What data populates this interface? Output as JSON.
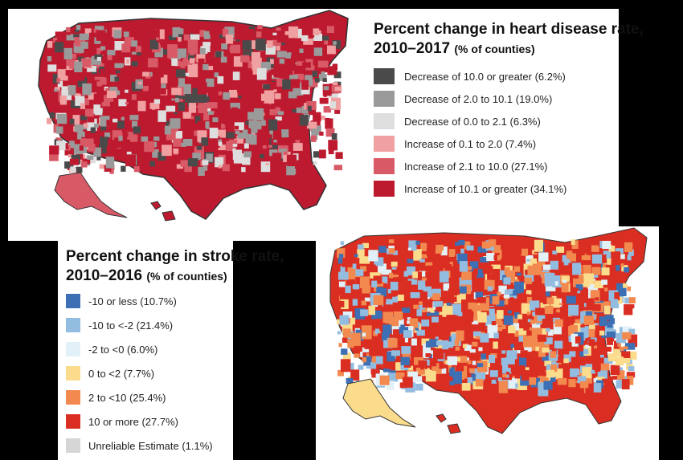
{
  "heart": {
    "title_line1": "Percent change in heart disease rate,",
    "title_line2": "2010–2017",
    "title_note": "(% of counties)",
    "legend": [
      {
        "label": "Decrease of 10.0 or greater (6.2%)",
        "color": "#4a4a4a"
      },
      {
        "label": "Decrease of 2.0 to 10.1 (19.0%)",
        "color": "#9a9a9a"
      },
      {
        "label": "Decrease of 0.0 to 2.1 (6.3%)",
        "color": "#dedede"
      },
      {
        "label": "Increase of 0.1 to 2.0 (7.4%)",
        "color": "#f0a0a0"
      },
      {
        "label": "Increase of 2.1 to 10.0 (27.1%)",
        "color": "#d95a67"
      },
      {
        "label": "Increase of 10.1 or greater (34.1%)",
        "color": "#bd1a30"
      }
    ]
  },
  "stroke": {
    "title_line1": "Percent change in stroke rate,",
    "title_line2": "2010–2016",
    "title_note": "(% of counties)",
    "legend": [
      {
        "label": "-10 or less (10.7%)",
        "color": "#3c6fb3"
      },
      {
        "label": "-10 to <-2 (21.4%)",
        "color": "#93bde0"
      },
      {
        "label": "-2 to <0 (6.0%)",
        "color": "#e1f1f7"
      },
      {
        "label": "0 to <2 (7.7%)",
        "color": "#fbdc8c"
      },
      {
        "label": "2 to <10 (25.4%)",
        "color": "#f2894f"
      },
      {
        "label": "10 or more (27.7%)",
        "color": "#db2e22"
      },
      {
        "label": "Unreliable Estimate (1.1%)",
        "color": "#d6d6d6"
      }
    ]
  }
}
